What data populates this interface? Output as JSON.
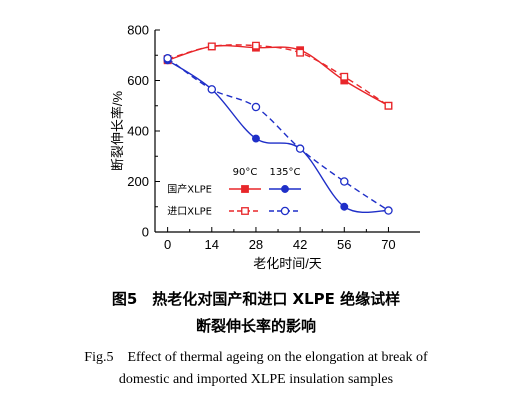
{
  "chart_data": {
    "type": "line",
    "x": [
      0,
      14,
      28,
      42,
      56,
      70
    ],
    "xlabel": "老化时间/天",
    "ylabel": "断裂伸长率/%",
    "xticks": [
      "0",
      "14",
      "28",
      "42",
      "56",
      "70"
    ],
    "yticks": [
      "0",
      "200",
      "400",
      "600",
      "800"
    ],
    "xlim": [
      -4,
      80
    ],
    "ylim": [
      0,
      800
    ],
    "grid": false,
    "legend": {
      "placement": "lower-left",
      "header_90": "90°C",
      "header_135": "135°C",
      "row_domestic": "国产XLPE",
      "row_imported": "进口XLPE"
    },
    "series": [
      {
        "name": "国产XLPE 90°C",
        "color": "#e8262a",
        "marker": "square-filled",
        "line": "solid",
        "values": [
          680,
          735,
          730,
          720,
          600,
          500
        ]
      },
      {
        "name": "进口XLPE 90°C",
        "color": "#e8262a",
        "marker": "square-open",
        "line": "dashed",
        "values": [
          685,
          735,
          738,
          710,
          615,
          500
        ]
      },
      {
        "name": "国产XLPE 135°C",
        "color": "#1f2fc8",
        "marker": "circle-filled",
        "line": "solid",
        "values": [
          680,
          565,
          370,
          330,
          100,
          85
        ]
      },
      {
        "name": "进口XLPE 135°C",
        "color": "#1f2fc8",
        "marker": "circle-open",
        "line": "dashed",
        "values": [
          688,
          565,
          495,
          330,
          200,
          85
        ]
      }
    ]
  },
  "caption": {
    "cn_line1": "图5　热老化对国产和进口 XLPE 绝缘试样",
    "cn_line2": "断裂伸长率的影响",
    "en_line1": "Fig.5　Effect of thermal ageing on the elongation at break of",
    "en_line2": "domestic and imported XLPE insulation samples"
  }
}
